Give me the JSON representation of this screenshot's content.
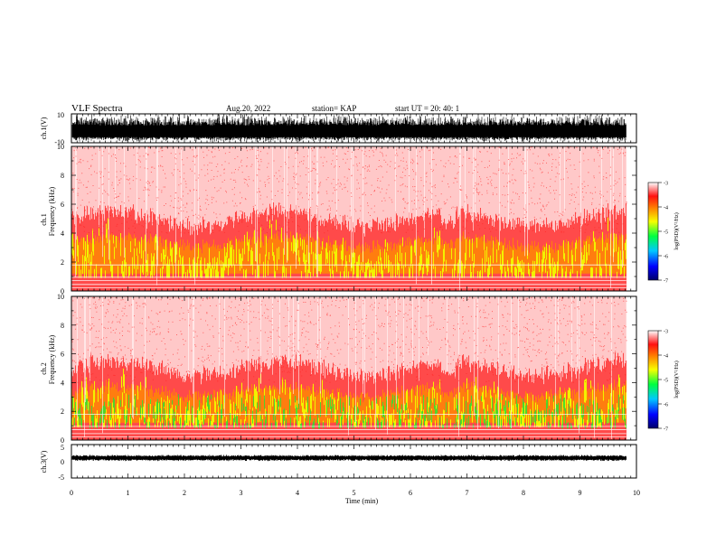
{
  "header": {
    "title": "VLF Spectra",
    "date": "Aug.20, 2022",
    "station": "station= KAP",
    "start_ut": "start  UT  =   20: 40: 1"
  },
  "chart_data": [
    {
      "type": "line",
      "panel": "ch1-waveform",
      "ylabel": "ch.1(V)",
      "ytick_labels": [
        "10",
        "-10"
      ],
      "ylim": [
        -10,
        10
      ],
      "xlim": [
        0,
        9.82
      ],
      "note_visible": "dense saturated waveform filling most of the range"
    },
    {
      "type": "heatmap",
      "panel": "ch1-spectrogram",
      "ylabel": "ch.1  Frequency (kHz)",
      "ylabel_line1": "ch.1",
      "ylabel_line2": "Frequency  (kHz)",
      "ylim": [
        0,
        10
      ],
      "yticks": [
        0,
        2,
        4,
        6,
        8,
        10
      ],
      "xlim": [
        0,
        9.82
      ],
      "colorbar": {
        "label": "log(PSD)(V²/Hz)",
        "range": [
          -7,
          -3
        ],
        "ticks": [
          -3,
          -4,
          -5,
          -6,
          -7
        ]
      }
    },
    {
      "type": "heatmap",
      "panel": "ch2-spectrogram",
      "ylabel": "ch.2  Frequency (kHz)",
      "ylabel_line1": "ch.2",
      "ylabel_line2": "Frequency  (kHz)",
      "ylim": [
        0,
        10
      ],
      "yticks": [
        0,
        2,
        4,
        6,
        8,
        10
      ],
      "xlim": [
        0,
        9.82
      ],
      "colorbar": {
        "label": "log(PSD)(V²/Hz)",
        "range": [
          -7,
          -3
        ],
        "ticks": [
          -3,
          -4,
          -5,
          -6,
          -7
        ]
      }
    },
    {
      "type": "line",
      "panel": "ch3-waveform",
      "ylabel": "ch.3(V)",
      "ytick_labels": [
        "5",
        "0",
        "-5"
      ],
      "ylim": [
        -5,
        5
      ],
      "xlim": [
        0,
        9.82
      ],
      "note_visible": "narrow band signal near +1 V"
    }
  ],
  "x_axis": {
    "label": "Time  (min)",
    "ticks": [
      "0",
      "1",
      "2",
      "3",
      "4",
      "5",
      "6",
      "7",
      "8",
      "9",
      "10"
    ],
    "range": [
      0,
      10
    ]
  },
  "colors": {
    "spectrum_background": "#ffffff",
    "low": "#ff9a9a",
    "mid": "#ff2020",
    "orange": "#ff8a00",
    "yellow": "#f2f200",
    "green": "#30e030",
    "waveform": "#000000"
  }
}
